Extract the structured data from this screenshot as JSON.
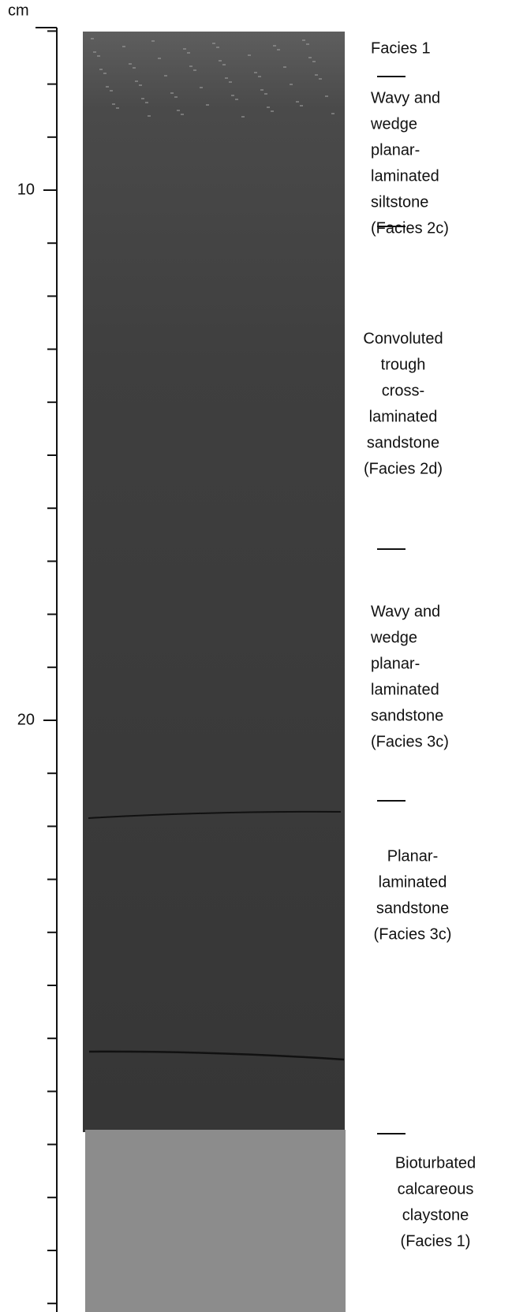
{
  "scale": {
    "unit": "cm",
    "labels": [
      "10",
      "20"
    ]
  },
  "facies": [
    {
      "lines": [
        "Facies 1"
      ]
    },
    {
      "lines": [
        "Wavy and",
        "wedge",
        "planar-",
        "laminated",
        "siltstone",
        "(Facies 2c)"
      ]
    },
    {
      "lines": [
        "Convoluted",
        "trough",
        "cross-",
        "laminated",
        "sandstone",
        "(Facies 2d)"
      ]
    },
    {
      "lines": [
        "Wavy and",
        "wedge",
        "planar-",
        "laminated",
        "sandstone",
        "(Facies 3c)"
      ]
    },
    {
      "lines": [
        "Planar-",
        "laminated",
        "sandstone",
        "(Facies 3c)"
      ]
    },
    {
      "lines": [
        "Bioturbated",
        "calcareous",
        "claystone",
        "(Facies 1)"
      ]
    }
  ]
}
